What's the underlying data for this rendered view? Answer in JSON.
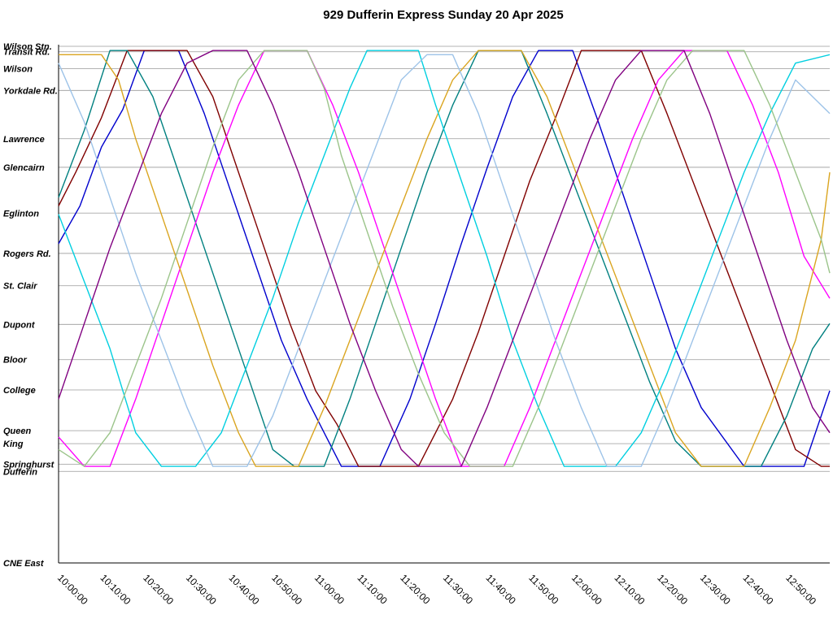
{
  "chart_data": {
    "type": "line",
    "title": "929 Dufferin Express Sunday 20 Apr 2025",
    "xlabel": "",
    "ylabel": "",
    "x_ticks": [
      "10:00:00",
      "10:10:00",
      "10:20:00",
      "10:30:00",
      "10:40:00",
      "10:50:00",
      "11:00:00",
      "11:10:00",
      "11:20:00",
      "11:30:00",
      "11:40:00",
      "11:50:00",
      "12:00:00",
      "12:10:00",
      "12:20:00",
      "12:30:00",
      "12:40:00",
      "12:50:00"
    ],
    "x_range_minutes": [
      0,
      180
    ],
    "y_axis_note": "Stops ordered north (top) to south (bottom); numeric value = position along route, 0 = Wilson Stn., 123 = CNE East",
    "stops": [
      {
        "name": "Wilson Stn.",
        "pos": 0
      },
      {
        "name": "Transit Rd.",
        "pos": 1.3
      },
      {
        "name": "Wilson",
        "pos": 5.3
      },
      {
        "name": "Yorkdale Rd.",
        "pos": 10.5
      },
      {
        "name": "Lawrence",
        "pos": 22
      },
      {
        "name": "Glencairn",
        "pos": 28.8
      },
      {
        "name": "Eglinton",
        "pos": 39.7
      },
      {
        "name": "Rogers Rd.",
        "pos": 49.3
      },
      {
        "name": "St. Clair",
        "pos": 57
      },
      {
        "name": "Dupont",
        "pos": 66.2
      },
      {
        "name": "Bloor",
        "pos": 74.6
      },
      {
        "name": "College",
        "pos": 81.8
      },
      {
        "name": "Queen",
        "pos": 91.5
      },
      {
        "name": "King",
        "pos": 94.6
      },
      {
        "name": "Springhurst",
        "pos": 99.5
      },
      {
        "name": "Dufferin",
        "pos": 101.2
      },
      {
        "name": "CNE East",
        "pos": 123
      }
    ],
    "grid": true,
    "legend": "none",
    "series": [
      {
        "color": "#0000cd",
        "points": [
          [
            0,
            47
          ],
          [
            5,
            38
          ],
          [
            10,
            24
          ],
          [
            15,
            15
          ],
          [
            20,
            1
          ],
          [
            28,
            1
          ],
          [
            34,
            16
          ],
          [
            40,
            34
          ],
          [
            46,
            52
          ],
          [
            52,
            70
          ],
          [
            58,
            84
          ],
          [
            62,
            92
          ],
          [
            66,
            100
          ],
          [
            75,
            100
          ],
          [
            82,
            84
          ],
          [
            88,
            66
          ],
          [
            94,
            47
          ],
          [
            100,
            29
          ],
          [
            106,
            12
          ],
          [
            112,
            1
          ],
          [
            120,
            1
          ],
          [
            126,
            18
          ],
          [
            132,
            36
          ],
          [
            138,
            54
          ],
          [
            144,
            72
          ],
          [
            150,
            86
          ],
          [
            160,
            100
          ],
          [
            174,
            100
          ],
          [
            180,
            82
          ]
        ]
      },
      {
        "color": "#800000",
        "points": [
          [
            0,
            38
          ],
          [
            4,
            30
          ],
          [
            10,
            17
          ],
          [
            16,
            1
          ],
          [
            22,
            1
          ],
          [
            30,
            1
          ],
          [
            36,
            12
          ],
          [
            42,
            30
          ],
          [
            48,
            48
          ],
          [
            54,
            66
          ],
          [
            60,
            82
          ],
          [
            65,
            90
          ],
          [
            70,
            100
          ],
          [
            84,
            100
          ],
          [
            92,
            84
          ],
          [
            98,
            68
          ],
          [
            104,
            50
          ],
          [
            110,
            32
          ],
          [
            116,
            17
          ],
          [
            122,
            1
          ],
          [
            136,
            1
          ],
          [
            142,
            16
          ],
          [
            148,
            32
          ],
          [
            154,
            48
          ],
          [
            160,
            64
          ],
          [
            166,
            80
          ],
          [
            172,
            96
          ],
          [
            178,
            100
          ],
          [
            180,
            100
          ]
        ]
      },
      {
        "color": "#008080",
        "points": [
          [
            0,
            36
          ],
          [
            6,
            20
          ],
          [
            12,
            1
          ],
          [
            16,
            1
          ],
          [
            22,
            12
          ],
          [
            28,
            30
          ],
          [
            34,
            48
          ],
          [
            40,
            66
          ],
          [
            46,
            84
          ],
          [
            50,
            96
          ],
          [
            55,
            100
          ],
          [
            62,
            100
          ],
          [
            68,
            84
          ],
          [
            74,
            66
          ],
          [
            80,
            48
          ],
          [
            86,
            30
          ],
          [
            92,
            14
          ],
          [
            98,
            1
          ],
          [
            108,
            1
          ],
          [
            114,
            16
          ],
          [
            120,
            32
          ],
          [
            126,
            48
          ],
          [
            132,
            64
          ],
          [
            138,
            80
          ],
          [
            144,
            94
          ],
          [
            150,
            100
          ],
          [
            164,
            100
          ],
          [
            170,
            88
          ],
          [
            176,
            72
          ],
          [
            180,
            66
          ]
        ]
      },
      {
        "color": "#ff00ff",
        "points": [
          [
            0,
            93
          ],
          [
            6,
            100
          ],
          [
            12,
            100
          ],
          [
            18,
            84
          ],
          [
            24,
            66
          ],
          [
            30,
            48
          ],
          [
            36,
            30
          ],
          [
            42,
            14
          ],
          [
            48,
            1
          ],
          [
            58,
            1
          ],
          [
            64,
            14
          ],
          [
            70,
            30
          ],
          [
            76,
            48
          ],
          [
            82,
            66
          ],
          [
            88,
            84
          ],
          [
            94,
            100
          ],
          [
            104,
            100
          ],
          [
            110,
            86
          ],
          [
            116,
            70
          ],
          [
            122,
            54
          ],
          [
            128,
            38
          ],
          [
            134,
            22
          ],
          [
            140,
            8
          ],
          [
            146,
            1
          ],
          [
            156,
            1
          ],
          [
            162,
            14
          ],
          [
            168,
            30
          ],
          [
            174,
            50
          ],
          [
            180,
            60
          ]
        ]
      },
      {
        "color": "#daa520",
        "points": [
          [
            0,
            2
          ],
          [
            10,
            2
          ],
          [
            14,
            8
          ],
          [
            18,
            22
          ],
          [
            24,
            40
          ],
          [
            30,
            58
          ],
          [
            36,
            76
          ],
          [
            42,
            92
          ],
          [
            46,
            100
          ],
          [
            56,
            100
          ],
          [
            62,
            86
          ],
          [
            68,
            70
          ],
          [
            74,
            54
          ],
          [
            80,
            38
          ],
          [
            86,
            22
          ],
          [
            92,
            8
          ],
          [
            98,
            1
          ],
          [
            108,
            1
          ],
          [
            114,
            12
          ],
          [
            120,
            28
          ],
          [
            126,
            44
          ],
          [
            132,
            60
          ],
          [
            138,
            76
          ],
          [
            144,
            92
          ],
          [
            150,
            100
          ],
          [
            160,
            100
          ],
          [
            166,
            86
          ],
          [
            172,
            70
          ],
          [
            178,
            46
          ],
          [
            180,
            30
          ]
        ]
      },
      {
        "color": "#00cfe0",
        "points": [
          [
            0,
            40
          ],
          [
            6,
            56
          ],
          [
            12,
            72
          ],
          [
            18,
            92
          ],
          [
            24,
            100
          ],
          [
            32,
            100
          ],
          [
            38,
            92
          ],
          [
            44,
            76
          ],
          [
            50,
            60
          ],
          [
            56,
            42
          ],
          [
            62,
            26
          ],
          [
            68,
            10
          ],
          [
            72,
            1
          ],
          [
            84,
            1
          ],
          [
            88,
            14
          ],
          [
            94,
            32
          ],
          [
            100,
            50
          ],
          [
            106,
            70
          ],
          [
            112,
            86
          ],
          [
            118,
            100
          ],
          [
            124,
            100
          ],
          [
            130,
            100
          ],
          [
            136,
            92
          ],
          [
            142,
            78
          ],
          [
            148,
            62
          ],
          [
            154,
            46
          ],
          [
            160,
            30
          ],
          [
            166,
            16
          ],
          [
            172,
            4
          ],
          [
            180,
            2
          ]
        ]
      },
      {
        "color": "#9dc3e8",
        "points": [
          [
            0,
            4
          ],
          [
            6,
            18
          ],
          [
            12,
            36
          ],
          [
            18,
            54
          ],
          [
            24,
            70
          ],
          [
            30,
            86
          ],
          [
            36,
            100
          ],
          [
            44,
            100
          ],
          [
            50,
            88
          ],
          [
            56,
            72
          ],
          [
            62,
            56
          ],
          [
            68,
            40
          ],
          [
            74,
            24
          ],
          [
            80,
            8
          ],
          [
            86,
            2
          ],
          [
            92,
            2
          ],
          [
            98,
            16
          ],
          [
            104,
            34
          ],
          [
            110,
            52
          ],
          [
            116,
            70
          ],
          [
            122,
            86
          ],
          [
            128,
            100
          ],
          [
            136,
            100
          ],
          [
            142,
            86
          ],
          [
            148,
            70
          ],
          [
            154,
            54
          ],
          [
            160,
            38
          ],
          [
            166,
            22
          ],
          [
            172,
            8
          ],
          [
            180,
            16
          ]
        ]
      },
      {
        "color": "#9bc48a",
        "points": [
          [
            0,
            96
          ],
          [
            6,
            100
          ],
          [
            12,
            92
          ],
          [
            18,
            76
          ],
          [
            24,
            60
          ],
          [
            30,
            42
          ],
          [
            36,
            24
          ],
          [
            42,
            8
          ],
          [
            48,
            1
          ],
          [
            58,
            1
          ],
          [
            62,
            10
          ],
          [
            66,
            26
          ],
          [
            72,
            44
          ],
          [
            78,
            62
          ],
          [
            84,
            78
          ],
          [
            90,
            92
          ],
          [
            96,
            100
          ],
          [
            106,
            100
          ],
          [
            112,
            86
          ],
          [
            118,
            70
          ],
          [
            124,
            54
          ],
          [
            130,
            38
          ],
          [
            136,
            22
          ],
          [
            142,
            8
          ],
          [
            148,
            1
          ],
          [
            160,
            1
          ],
          [
            166,
            14
          ],
          [
            172,
            30
          ],
          [
            178,
            46
          ],
          [
            180,
            54
          ]
        ]
      },
      {
        "color": "#800080",
        "points": [
          [
            0,
            84
          ],
          [
            6,
            66
          ],
          [
            12,
            48
          ],
          [
            18,
            32
          ],
          [
            24,
            16
          ],
          [
            30,
            4
          ],
          [
            36,
            1
          ],
          [
            44,
            1
          ],
          [
            50,
            14
          ],
          [
            56,
            30
          ],
          [
            62,
            48
          ],
          [
            68,
            66
          ],
          [
            74,
            82
          ],
          [
            80,
            96
          ],
          [
            84,
            100
          ],
          [
            94,
            100
          ],
          [
            100,
            86
          ],
          [
            106,
            70
          ],
          [
            112,
            54
          ],
          [
            118,
            38
          ],
          [
            124,
            22
          ],
          [
            130,
            8
          ],
          [
            136,
            1
          ],
          [
            146,
            1
          ],
          [
            152,
            16
          ],
          [
            158,
            34
          ],
          [
            164,
            52
          ],
          [
            170,
            70
          ],
          [
            176,
            86
          ],
          [
            180,
            92
          ]
        ]
      }
    ]
  }
}
